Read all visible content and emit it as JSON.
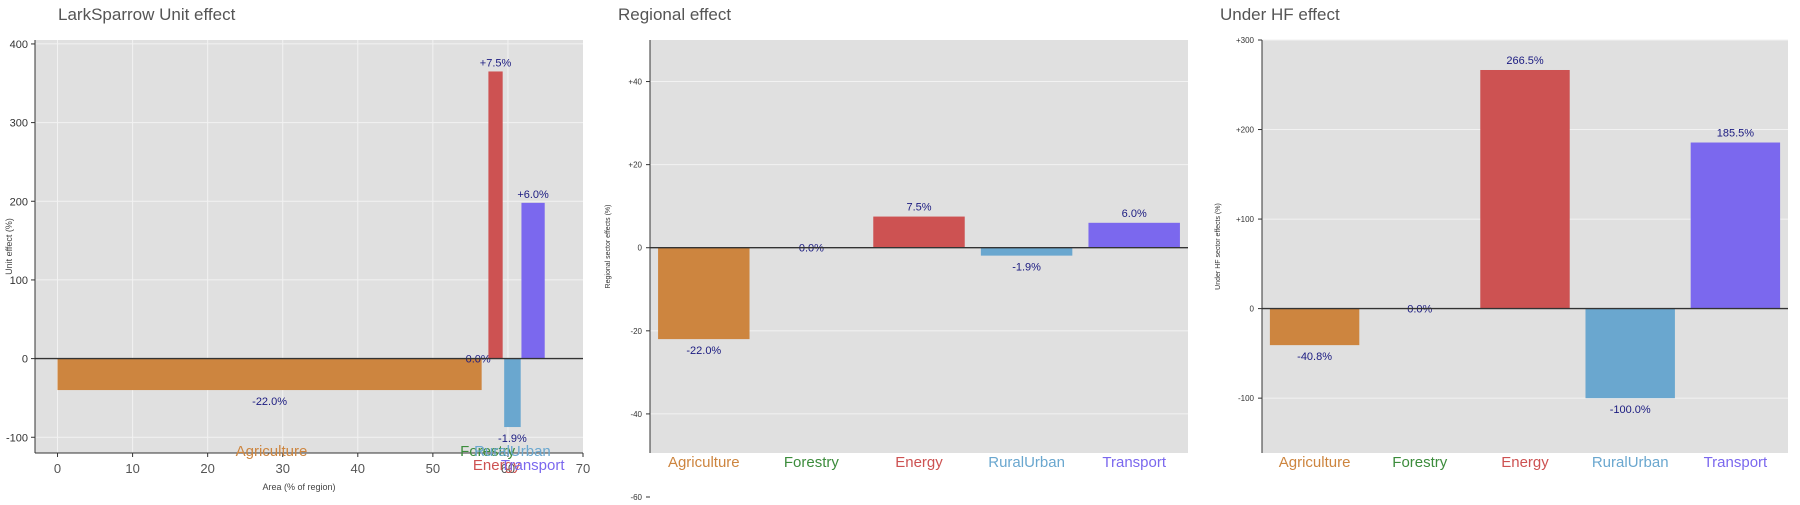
{
  "colors": {
    "Agriculture": "#cd853f",
    "Forestry": "#3c8c3c",
    "Energy": "#cd5252",
    "RuralUrban": "#6aa7cf",
    "Transport": "#7b68ee",
    "label": "#1a1a80",
    "panel_bg": "#e0e0e0",
    "zero_line": "#333333"
  },
  "chart_data": [
    {
      "type": "bar",
      "title": "LarkSparrow Unit effect",
      "xlabel": "Area (% of region)",
      "ylabel": "Unit effect (%)",
      "xlim": [
        -3,
        70
      ],
      "ylim": [
        -120,
        405
      ],
      "xticks": [
        0,
        10,
        20,
        30,
        40,
        50,
        60,
        70
      ],
      "yticks": [
        -100,
        0,
        100,
        200,
        300,
        400
      ],
      "grid": true,
      "bars": [
        {
          "category": "Agriculture",
          "x_start": 0,
          "x_end": 56.5,
          "value": -40,
          "label": "-22.0%"
        },
        {
          "category": "Forestry",
          "x_start": 57.3,
          "x_end": 57.3,
          "value": 0,
          "label": "0.0%"
        },
        {
          "category": "Energy",
          "x_start": 57.4,
          "x_end": 59.3,
          "value": 365,
          "label": "+7.5%"
        },
        {
          "category": "RuralUrban",
          "x_start": 59.5,
          "x_end": 61.7,
          "value": -87,
          "label": "-1.9%"
        },
        {
          "category": "Transport",
          "x_start": 61.8,
          "x_end": 64.9,
          "value": 198,
          "label": "+6.0%"
        }
      ],
      "category_labels": [
        {
          "name": "Agriculture",
          "x": 28.5
        },
        {
          "name": "Forestry",
          "x": 57.3
        },
        {
          "name": "Energy",
          "x": 58.5
        },
        {
          "name": "RuralUrban",
          "x": 60.6
        },
        {
          "name": "Transport",
          "x": 63.3
        }
      ]
    },
    {
      "type": "bar",
      "title": "Regional effect",
      "xlabel": "",
      "ylabel": "Regional sector effects (%)",
      "ylim": [
        -60,
        50
      ],
      "yticks": [
        -60,
        -40,
        -20,
        0,
        20,
        40
      ],
      "ytick_labels": [
        "-60",
        "-40",
        "-20",
        "0",
        "+20",
        "+40"
      ],
      "grid": true,
      "categories": [
        "Agriculture",
        "Forestry",
        "Energy",
        "RuralUrban",
        "Transport"
      ],
      "values": [
        -22.0,
        0.0,
        7.5,
        -1.9,
        6.0
      ],
      "labels": [
        "-22.0%",
        "0.0%",
        "7.5%",
        "-1.9%",
        "6.0%"
      ]
    },
    {
      "type": "bar",
      "title": "Under HF effect",
      "xlabel": "",
      "ylabel": "Under HF sector effects (%)",
      "ylim": [
        -130,
        300
      ],
      "yticks": [
        -100,
        0,
        100,
        200,
        300
      ],
      "ytick_labels": [
        "-100",
        "0",
        "+100",
        "+200",
        "+300"
      ],
      "grid": true,
      "categories": [
        "Agriculture",
        "Forestry",
        "Energy",
        "RuralUrban",
        "Transport"
      ],
      "values": [
        -40.8,
        0.0,
        266.5,
        -100.0,
        185.5
      ],
      "labels": [
        "-40.8%",
        "0.0%",
        "266.5%",
        "-100.0%",
        "185.5%"
      ]
    }
  ]
}
